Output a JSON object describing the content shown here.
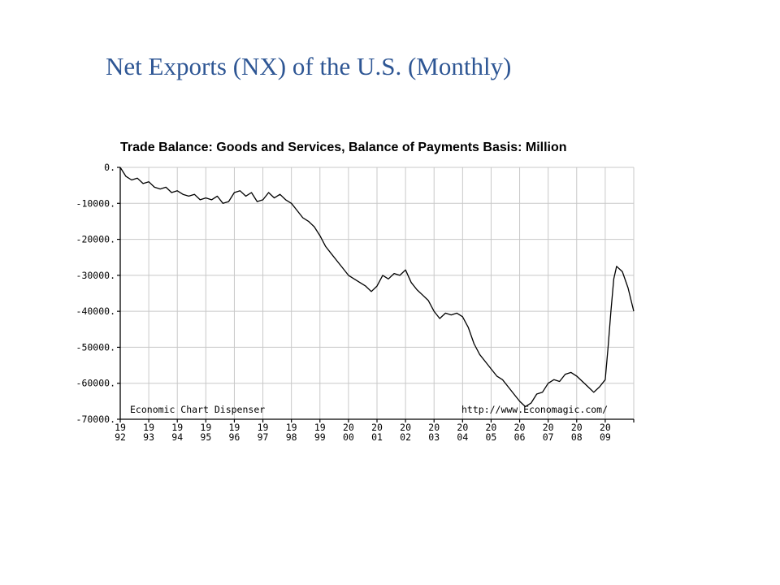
{
  "slide": {
    "title": "Net Exports (NX) of the U.S. (Monthly)"
  },
  "colors": {
    "title": "#2e5694",
    "line": "#000000",
    "grid": "#c8c8c8",
    "background": "#ffffff"
  },
  "chart_data": {
    "type": "line",
    "title": "Trade Balance: Goods and Services, Balance of Payments Basis: Million",
    "xlabel": "",
    "ylabel": "",
    "grid": true,
    "legend": "none",
    "xlim": [
      1992,
      2010
    ],
    "ylim": [
      -70000,
      0
    ],
    "y_ticks": [
      0,
      -10000,
      -20000,
      -30000,
      -40000,
      -50000,
      -60000,
      -70000
    ],
    "y_tick_labels": [
      "0.",
      "-10000.",
      "-20000.",
      "-30000.",
      "-40000.",
      "-50000.",
      "-60000.",
      "-70000."
    ],
    "x_tick_labels": [
      {
        "top": "19",
        "bottom": "92",
        "year": 1992
      },
      {
        "top": "19",
        "bottom": "93",
        "year": 1993
      },
      {
        "top": "19",
        "bottom": "94",
        "year": 1994
      },
      {
        "top": "19",
        "bottom": "95",
        "year": 1995
      },
      {
        "top": "19",
        "bottom": "96",
        "year": 1996
      },
      {
        "top": "19",
        "bottom": "97",
        "year": 1997
      },
      {
        "top": "19",
        "bottom": "98",
        "year": 1998
      },
      {
        "top": "19",
        "bottom": "99",
        "year": 1999
      },
      {
        "top": "20",
        "bottom": "00",
        "year": 2000
      },
      {
        "top": "20",
        "bottom": "01",
        "year": 2001
      },
      {
        "top": "20",
        "bottom": "02",
        "year": 2002
      },
      {
        "top": "20",
        "bottom": "03",
        "year": 2003
      },
      {
        "top": "20",
        "bottom": "04",
        "year": 2004
      },
      {
        "top": "20",
        "bottom": "05",
        "year": 2005
      },
      {
        "top": "20",
        "bottom": "06",
        "year": 2006
      },
      {
        "top": "20",
        "bottom": "07",
        "year": 2007
      },
      {
        "top": "20",
        "bottom": "08",
        "year": 2008
      },
      {
        "top": "20",
        "bottom": "09",
        "year": 2009
      }
    ],
    "annotations": {
      "left": "Economic Chart Dispenser",
      "right": "http://www.Economagic.com/"
    },
    "series": [
      {
        "x": [
          1992.0,
          1992.2,
          1992.4,
          1992.6,
          1992.8,
          1993.0,
          1993.2,
          1993.4,
          1993.6,
          1993.8,
          1994.0,
          1994.2,
          1994.4,
          1994.6,
          1994.8,
          1995.0,
          1995.2,
          1995.4,
          1995.6,
          1995.8,
          1996.0,
          1996.2,
          1996.4,
          1996.6,
          1996.8,
          1997.0,
          1997.2,
          1997.4,
          1997.6,
          1997.8,
          1998.0,
          1998.2,
          1998.4,
          1998.6,
          1998.8,
          1999.0,
          1999.2,
          1999.4,
          1999.6,
          1999.8,
          2000.0,
          2000.2,
          2000.4,
          2000.6,
          2000.8,
          2001.0,
          2001.2,
          2001.4,
          2001.6,
          2001.8,
          2002.0,
          2002.2,
          2002.4,
          2002.6,
          2002.8,
          2003.0,
          2003.2,
          2003.4,
          2003.6,
          2003.8,
          2004.0,
          2004.2,
          2004.4,
          2004.6,
          2004.8,
          2005.0,
          2005.2,
          2005.4,
          2005.6,
          2005.8,
          2006.0,
          2006.2,
          2006.4,
          2006.6,
          2006.8,
          2007.0,
          2007.2,
          2007.4,
          2007.6,
          2007.8,
          2008.0,
          2008.2,
          2008.4,
          2008.6,
          2008.8,
          2009.0,
          2009.1,
          2009.2,
          2009.3,
          2009.4,
          2009.6,
          2009.8,
          2010.0
        ],
        "values": [
          0,
          -2500,
          -3500,
          -3000,
          -4500,
          -4000,
          -5500,
          -6000,
          -5500,
          -7000,
          -6500,
          -7500,
          -8000,
          -7500,
          -9000,
          -8500,
          -9000,
          -8000,
          -10000,
          -9500,
          -7000,
          -6500,
          -8000,
          -7000,
          -9500,
          -9000,
          -7000,
          -8500,
          -7500,
          -9000,
          -10000,
          -12000,
          -14000,
          -15000,
          -16500,
          -19000,
          -22000,
          -24000,
          -26000,
          -28000,
          -30000,
          -31000,
          -32000,
          -33000,
          -34500,
          -33000,
          -30000,
          -31000,
          -29500,
          -30000,
          -28500,
          -32000,
          -34000,
          -35500,
          -37000,
          -40000,
          -42000,
          -40500,
          -41000,
          -40500,
          -41500,
          -44500,
          -49000,
          -52000,
          -54000,
          -56000,
          -58000,
          -59000,
          -61000,
          -63000,
          -65000,
          -66500,
          -65500,
          -63000,
          -62500,
          -60000,
          -59000,
          -59500,
          -57500,
          -57000,
          -58000,
          -59500,
          -61000,
          -62500,
          -61000,
          -59000,
          -50000,
          -40000,
          -31000,
          -27500,
          -29000,
          -33500,
          -40000
        ]
      }
    ]
  }
}
